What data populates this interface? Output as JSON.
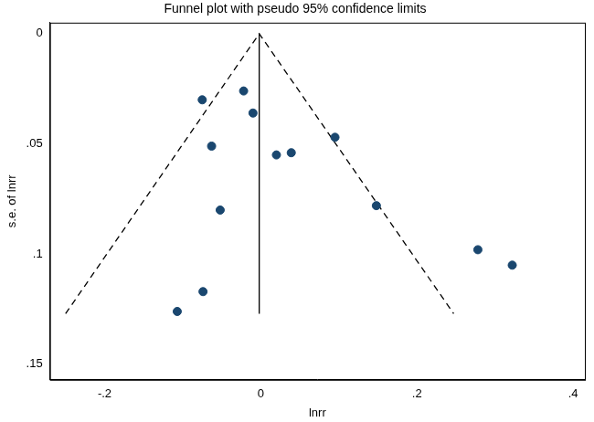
{
  "chart_data": {
    "type": "scatter",
    "title": "Funnel plot with pseudo 95% confidence limits",
    "x_label": "lnrr",
    "y_label": "s.e. of lnrr",
    "points": {
      "x": [
        -0.075,
        -0.022,
        -0.01,
        -0.063,
        0.02,
        0.039,
        0.095,
        -0.052,
        0.148,
        -0.074,
        -0.107,
        0.278,
        0.322
      ],
      "y": [
        0.03,
        0.026,
        0.036,
        0.051,
        0.055,
        0.054,
        0.047,
        0.08,
        0.078,
        0.117,
        0.126,
        0.098,
        0.105
      ],
      "color": "#1a476f",
      "marker": "circle"
    },
    "lines": [
      {
        "x": [
          -0.25,
          -0.002,
          0.247
        ],
        "y": [
          0.127,
          0,
          0.127
        ],
        "color": "#000000",
        "line_style": "dashed"
      },
      {
        "x": [
          -0.002,
          -0.002
        ],
        "y": [
          0,
          0.127
        ],
        "color": "#000000",
        "line_style": "solid"
      }
    ],
    "xlim": [
      -0.27,
      0.415
    ],
    "xticks": [
      {
        "value": -0.2,
        "label": "-.2"
      },
      0,
      {
        "value": 0.2,
        "label": ".2"
      },
      {
        "value": 0.4,
        "label": ".4"
      }
    ],
    "ylim": [
      -0.005,
      0.157
    ],
    "yticks": [
      0,
      {
        "value": 0.05,
        "label": ".05"
      },
      {
        "value": 0.1,
        "label": ".1"
      },
      {
        "value": 0.15,
        "label": ".15"
      }
    ],
    "y_reversed": true,
    "grid": false
  }
}
